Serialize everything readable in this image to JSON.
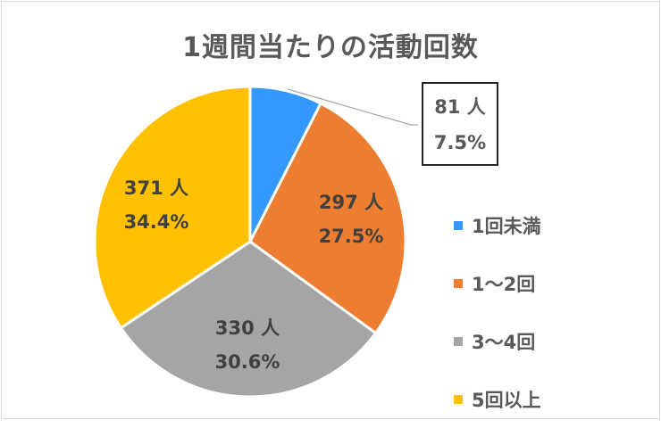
{
  "chart_data": {
    "type": "pie",
    "title": "1週間当たりの活動回数",
    "categories": [
      "1回未満",
      "1～2回",
      "3～4回",
      "5回以上"
    ],
    "values": [
      81,
      297,
      330,
      371
    ],
    "percentages": [
      7.5,
      27.5,
      30.6,
      34.4
    ],
    "colors": [
      "#3399FF",
      "#ED7D31",
      "#A5A5A5",
      "#FFC000"
    ],
    "labels": [
      {
        "count": "81 人",
        "pct": "7.5%"
      },
      {
        "count": "297 人",
        "pct": "27.5%"
      },
      {
        "count": "330 人",
        "pct": "30.6%"
      },
      {
        "count": "371 人",
        "pct": "34.4%"
      }
    ],
    "legend_position": "right"
  },
  "title": "1週間当たりの活動回数",
  "legend": [
    {
      "label": "1回未満",
      "color": "#3399FF"
    },
    {
      "label": "1～2回",
      "color": "#ED7D31"
    },
    {
      "label": "3～4回",
      "color": "#A5A5A5"
    },
    {
      "label": "5回以上",
      "color": "#FFC000"
    }
  ]
}
